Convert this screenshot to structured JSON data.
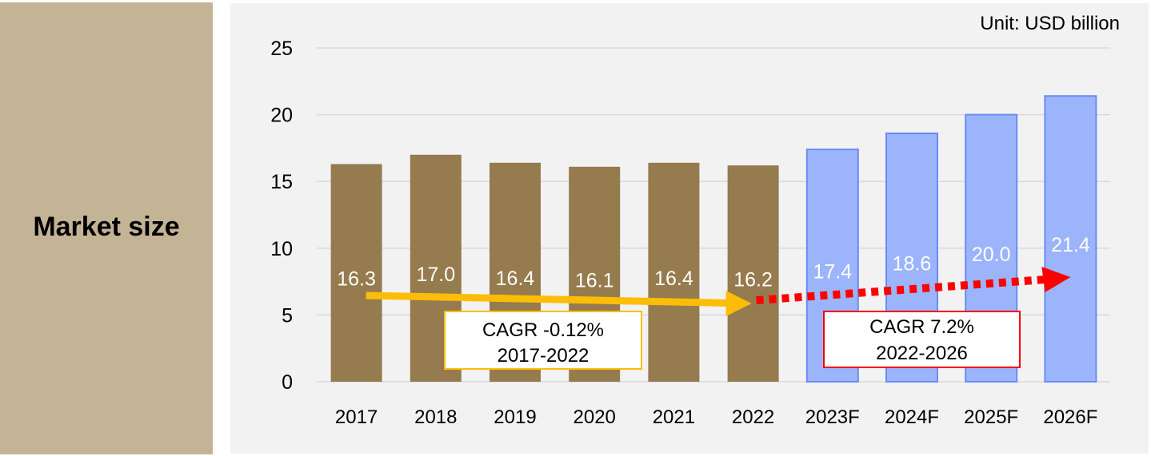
{
  "side_panel": {
    "title": "Market size"
  },
  "chart_data": {
    "type": "bar",
    "unit_label": "Unit: USD billion",
    "categories": [
      "2017",
      "2018",
      "2019",
      "2020",
      "2021",
      "2022",
      "2023F",
      "2024F",
      "2025F",
      "2026F"
    ],
    "values": [
      16.3,
      17.0,
      16.4,
      16.1,
      16.4,
      16.2,
      17.4,
      18.6,
      20.0,
      21.4
    ],
    "value_labels": [
      "16.3",
      "17.0",
      "16.4",
      "16.1",
      "16.4",
      "16.2",
      "17.4",
      "18.6",
      "20.0",
      "21.4"
    ],
    "forecast_from_index": 6,
    "ylim": [
      0,
      25
    ],
    "yticks": [
      0,
      5,
      10,
      15,
      20,
      25
    ],
    "grid": true,
    "colors": {
      "actual": "#967b4e",
      "forecast_fill": "#9cb4fb",
      "forecast_stroke": "#6a8cf5",
      "cagr_actual": "#fbbd08",
      "cagr_forecast": "#ff0000",
      "grid": "#d9d9d9"
    },
    "annotations": [
      {
        "id": "cagr-actual",
        "text": "CAGR -0.12%",
        "period": "2017-2022"
      },
      {
        "id": "cagr-forecast",
        "text": "CAGR 7.2%",
        "period": "2022-2026"
      }
    ]
  }
}
